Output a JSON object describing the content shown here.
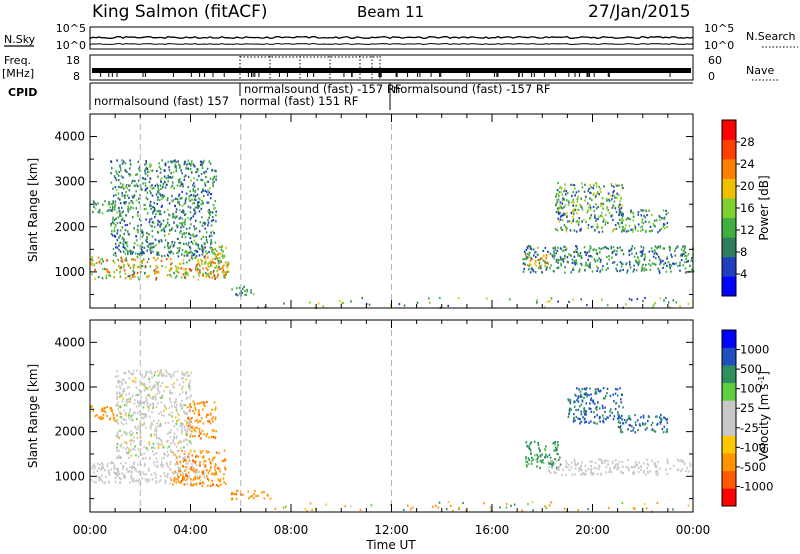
{
  "header": {
    "station": "King Salmon (fitACF)",
    "beam": "Beam 11",
    "date": "27/Jan/2015"
  },
  "aux_labels": {
    "nsky": "N.Sky",
    "nsearch": "N.Search",
    "freq_line1": "Freq.",
    "freq_line2": "[MHz]",
    "nave": "Nave",
    "cpid": "CPID"
  },
  "aux_ticks": {
    "n_left_top": "10^5",
    "n_left_bottom": "10^0",
    "n_right_top": "10^5",
    "n_right_bottom": "10^0",
    "freq_top": "18",
    "freq_bottom": "8",
    "nave_top": "60",
    "nave_bottom": "0"
  },
  "cpid_segments": [
    {
      "label": "normalsound (fast) -157 RF"
    },
    {
      "label": "normalsound (fast) 157"
    },
    {
      "label": "normal (fast) 151 RF"
    },
    {
      "label": "normalsound (fast) -157 RF"
    }
  ],
  "colors": {
    "power": [
      "#0000ff",
      "#1f3fbf",
      "#2f7f5f",
      "#3faf3f",
      "#7fcf2f",
      "#f0c000",
      "#ff8000",
      "#ff4000",
      "#ff0000"
    ],
    "velocity": [
      "#ff0000",
      "#ff5a00",
      "#ff9600",
      "#ffc800",
      "#c8c8c8",
      "#c8c8c8",
      "#60d040",
      "#2f8f5f",
      "#1f4fbf",
      "#0000ff"
    ],
    "gray_line": "#b4b4b4"
  },
  "chart_data": [
    {
      "type": "heatmap",
      "name": "power",
      "ylabel": "Slant Range [km]",
      "xlabel": "",
      "xlim": [
        0,
        24
      ],
      "ylim": [
        200,
        4500
      ],
      "yticks": [
        "1000",
        "2000",
        "3000",
        "4000"
      ],
      "colorbar": {
        "label": "Power [dB]",
        "ticks": [
          "4",
          "8",
          "12",
          "16",
          "20",
          "24",
          "28"
        ],
        "range": [
          0,
          30
        ]
      },
      "regions": [
        {
          "x": [
            0.0,
            5.4
          ],
          "y": [
            850,
            1350
          ],
          "v": [
            8,
            26
          ]
        },
        {
          "x": [
            0.8,
            5.0
          ],
          "y": [
            1350,
            3500
          ],
          "v": [
            4,
            14
          ]
        },
        {
          "x": [
            0.0,
            1.0
          ],
          "y": [
            2300,
            2600
          ],
          "v": [
            6,
            14
          ]
        },
        {
          "x": [
            4.5,
            5.5
          ],
          "y": [
            900,
            1600
          ],
          "v": [
            10,
            22
          ]
        },
        {
          "x": [
            5.6,
            6.5
          ],
          "y": [
            500,
            700
          ],
          "v": [
            4,
            14
          ]
        },
        {
          "x": [
            17.2,
            24.0
          ],
          "y": [
            1000,
            1600
          ],
          "v": [
            4,
            14
          ]
        },
        {
          "x": [
            17.3,
            18.3
          ],
          "y": [
            1150,
            1400
          ],
          "v": [
            14,
            24
          ]
        },
        {
          "x": [
            18.5,
            21.2
          ],
          "y": [
            1900,
            3000
          ],
          "v": [
            4,
            18
          ]
        },
        {
          "x": [
            21.0,
            23.0
          ],
          "y": [
            1900,
            2400
          ],
          "v": [
            4,
            16
          ]
        },
        {
          "x": [
            6.5,
            24.0
          ],
          "y": [
            220,
            450
          ],
          "v": [
            4,
            20
          ]
        }
      ]
    },
    {
      "type": "heatmap",
      "name": "velocity",
      "ylabel": "Slant Range [km]",
      "xlabel": "Time UT",
      "xlim": [
        0,
        24
      ],
      "ylim": [
        200,
        4500
      ],
      "xticks": [
        "00:00",
        "04:00",
        "08:00",
        "12:00",
        "16:00",
        "20:00",
        "00:00"
      ],
      "yticks": [
        "1000",
        "2000",
        "3000",
        "4000"
      ],
      "colorbar": {
        "label": "Velocity [m s^-1]",
        "ticks": [
          "-1000",
          "-500",
          "-100",
          "-25",
          "25",
          "100",
          "500",
          "1000"
        ]
      },
      "regions": [
        {
          "x": [
            0.0,
            4.6
          ],
          "y": [
            850,
            1350
          ],
          "v": [
            -20,
            20
          ]
        },
        {
          "x": [
            0.0,
            1.2
          ],
          "y": [
            2250,
            2600
          ],
          "v": [
            -500,
            -100
          ]
        },
        {
          "x": [
            3.8,
            5.0
          ],
          "y": [
            1850,
            2700
          ],
          "v": [
            -600,
            -150
          ]
        },
        {
          "x": [
            3.2,
            5.4
          ],
          "y": [
            800,
            1600
          ],
          "v": [
            -600,
            -200
          ]
        },
        {
          "x": [
            1.0,
            4.0
          ],
          "y": [
            1400,
            3400
          ],
          "v": [
            -30,
            30
          ]
        },
        {
          "x": [
            5.6,
            7.2
          ],
          "y": [
            500,
            700
          ],
          "v": [
            -600,
            -200
          ]
        },
        {
          "x": [
            17.2,
            18.7
          ],
          "y": [
            1200,
            1800
          ],
          "v": [
            80,
            200
          ]
        },
        {
          "x": [
            18.2,
            24.0
          ],
          "y": [
            1050,
            1400
          ],
          "v": [
            -20,
            20
          ]
        },
        {
          "x": [
            19.0,
            21.2
          ],
          "y": [
            2200,
            3000
          ],
          "v": [
            100,
            1000
          ]
        },
        {
          "x": [
            21.0,
            23.0
          ],
          "y": [
            2000,
            2400
          ],
          "v": [
            100,
            900
          ]
        },
        {
          "x": [
            6.5,
            24.0
          ],
          "y": [
            220,
            450
          ],
          "v": [
            -500,
            500
          ]
        }
      ]
    }
  ]
}
